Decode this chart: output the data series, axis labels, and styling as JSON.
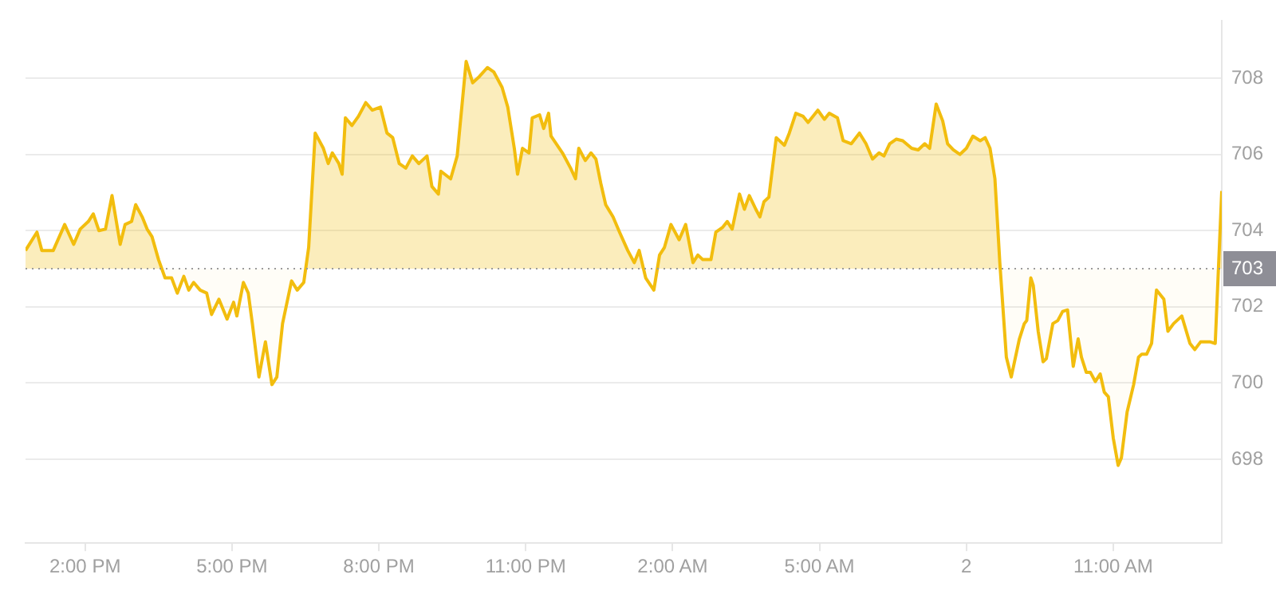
{
  "chart_data": {
    "type": "area",
    "x": [
      "--01-01T12:47",
      "--01-01T13:01",
      "--01-01T13:07",
      "--01-01T13:21",
      "--01-01T13:35",
      "--01-01T13:46",
      "--01-01T13:54",
      "--01-01T14:04",
      "--01-01T14:10",
      "--01-01T14:17",
      "--01-01T14:25",
      "--01-01T14:33",
      "--01-01T14:43",
      "--01-01T14:49",
      "--01-01T14:57",
      "--01-01T15:02",
      "--01-01T15:10",
      "--01-01T15:16",
      "--01-01T15:22",
      "--01-01T15:30",
      "--01-01T15:38",
      "--01-01T15:46",
      "--01-01T15:53",
      "--01-01T16:01",
      "--01-01T16:07",
      "--01-01T16:13",
      "--01-01T16:21",
      "--01-01T16:29",
      "--01-01T16:35",
      "--01-01T16:44",
      "--01-01T16:54",
      "--01-01T17:02",
      "--01-01T17:06",
      "--01-01T17:14",
      "--01-01T17:20",
      "--01-01T17:25",
      "--01-01T17:33",
      "--01-01T17:41",
      "--01-01T17:49",
      "--01-01T17:55",
      "--01-01T18:02",
      "--01-01T18:13",
      "--01-01T18:20",
      "--01-01T18:28",
      "--01-01T18:34",
      "--01-01T18:42",
      "--01-01T18:52",
      "--01-01T18:58",
      "--01-01T19:03",
      "--01-01T19:11",
      "--01-01T19:15",
      "--01-01T19:19",
      "--01-01T19:27",
      "--01-01T19:35",
      "--01-01T19:44",
      "--01-01T19:52",
      "--01-01T20:02",
      "--01-01T20:10",
      "--01-01T20:17",
      "--01-01T20:25",
      "--01-01T20:33",
      "--01-01T20:41",
      "--01-01T20:49",
      "--01-01T20:59",
      "--01-01T21:05",
      "--01-01T21:13",
      "--01-01T21:16",
      "--01-01T21:28",
      "--01-01T21:36",
      "--01-01T21:47",
      "--01-01T21:55",
      "--01-01T22:03",
      "--01-01T22:13",
      "--01-01T22:21",
      "--01-01T22:31",
      "--01-01T22:38",
      "--01-01T22:46",
      "--01-01T22:50",
      "--01-01T22:56",
      "--01-01T23:04",
      "--01-01T23:08",
      "--01-01T23:17",
      "--01-01T23:22",
      "--01-01T23:28",
      "--01-01T23:31",
      "--01-01T23:45",
      "--01-01T23:55",
      "--01-02T00:01",
      "--01-02T00:05",
      "--01-02T00:13",
      "--01-02T00:20",
      "--01-02T00:26",
      "--01-02T00:32",
      "--01-02T00:38",
      "--01-02T00:47",
      "--01-02T00:55",
      "--01-02T01:05",
      "--01-02T01:13",
      "--01-02T01:19",
      "--01-02T01:27",
      "--01-02T01:37",
      "--01-02T01:44",
      "--01-02T01:50",
      "--01-02T01:58",
      "--01-02T02:08",
      "--01-02T02:16",
      "--01-02T02:25",
      "--01-02T02:31",
      "--01-02T02:37",
      "--01-02T02:47",
      "--01-02T02:53",
      "--01-02T03:01",
      "--01-02T03:07",
      "--01-02T03:13",
      "--01-02T03:22",
      "--01-02T03:28",
      "--01-02T03:34",
      "--01-02T03:42",
      "--01-02T03:47",
      "--01-02T03:52",
      "--01-02T03:58",
      "--01-02T04:07",
      "--01-02T04:17",
      "--01-02T04:23",
      "--01-02T04:31",
      "--01-02T04:40",
      "--01-02T04:46",
      "--01-02T04:58",
      "--01-02T05:06",
      "--01-02T05:12",
      "--01-02T05:22",
      "--01-02T05:29",
      "--01-02T05:39",
      "--01-02T05:49",
      "--01-02T05:57",
      "--01-02T06:05",
      "--01-02T06:13",
      "--01-02T06:19",
      "--01-02T06:26",
      "--01-02T06:34",
      "--01-02T06:42",
      "--01-02T06:53",
      "--01-02T07:01",
      "--01-02T07:09",
      "--01-02T07:15",
      "--01-02T07:23",
      "--01-02T07:31",
      "--01-02T07:37",
      "--01-02T07:44",
      "--01-02T07:52",
      "--01-02T08:00",
      "--01-02T08:08",
      "--01-02T08:17",
      "--01-02T08:23",
      "--01-02T08:29",
      "--01-02T08:35",
      "--01-02T08:41",
      "--01-02T08:49",
      "--01-02T08:55",
      "--01-02T09:05",
      "--01-02T09:11",
      "--01-02T09:14",
      "--01-02T09:19",
      "--01-02T09:22",
      "--01-02T09:28",
      "--01-02T09:34",
      "--01-02T09:38",
      "--01-02T09:46",
      "--01-02T09:52",
      "--01-02T09:58",
      "--01-02T10:04",
      "--01-02T10:11",
      "--01-02T10:17",
      "--01-02T10:21",
      "--01-02T10:27",
      "--01-02T10:32",
      "--01-02T10:38",
      "--01-02T10:44",
      "--01-02T10:49",
      "--01-02T10:54",
      "--01-02T11:00",
      "--01-02T11:06",
      "--01-02T11:10",
      "--01-02T11:17",
      "--01-02T11:25",
      "--01-02T11:31",
      "--01-02T11:35",
      "--01-02T11:41",
      "--01-02T11:47",
      "--01-02T11:53",
      "--01-02T12:02",
      "--01-02T12:07",
      "--01-02T12:14",
      "--01-02T12:24",
      "--01-02T12:34",
      "--01-02T12:40",
      "--01-02T12:47",
      "--01-02T12:59",
      "--01-02T13:05",
      "--01-02T13:13"
    ],
    "series": [
      {
        "color": "#f2bd0e",
        "values": [
          703.48,
          703.96,
          703.48,
          703.48,
          704.16,
          703.64,
          704.04,
          704.24,
          704.44,
          704.0,
          704.04,
          704.92,
          703.64,
          704.16,
          704.24,
          704.68,
          704.36,
          704.04,
          703.84,
          703.24,
          702.76,
          702.76,
          702.36,
          702.8,
          702.44,
          702.64,
          702.44,
          702.36,
          701.8,
          702.2,
          701.68,
          702.12,
          701.76,
          702.64,
          702.36,
          701.56,
          700.16,
          701.08,
          699.96,
          700.16,
          701.56,
          702.68,
          702.44,
          702.64,
          703.56,
          706.56,
          706.16,
          705.76,
          706.04,
          705.76,
          705.48,
          706.96,
          706.76,
          707.0,
          707.36,
          707.16,
          707.24,
          706.56,
          706.44,
          705.76,
          705.64,
          705.96,
          705.76,
          705.96,
          705.16,
          704.96,
          705.56,
          705.36,
          705.96,
          708.44,
          707.88,
          708.04,
          708.28,
          708.16,
          707.76,
          707.24,
          706.16,
          705.48,
          706.16,
          706.04,
          706.96,
          707.04,
          706.68,
          707.08,
          706.48,
          706.04,
          705.64,
          705.36,
          706.16,
          705.84,
          706.04,
          705.88,
          705.24,
          704.68,
          704.36,
          703.96,
          703.48,
          703.16,
          703.48,
          702.76,
          702.44,
          703.36,
          703.56,
          704.16,
          703.76,
          704.16,
          703.16,
          703.36,
          703.24,
          703.24,
          703.96,
          704.08,
          704.24,
          704.04,
          704.96,
          704.56,
          704.92,
          704.56,
          704.36,
          704.76,
          704.88,
          706.44,
          706.24,
          706.56,
          707.08,
          707.0,
          706.84,
          707.16,
          706.92,
          707.08,
          706.96,
          706.36,
          706.28,
          706.56,
          706.28,
          705.88,
          706.04,
          705.96,
          706.28,
          706.4,
          706.36,
          706.16,
          706.12,
          706.28,
          706.16,
          707.32,
          706.88,
          706.28,
          706.12,
          706.0,
          706.16,
          706.48,
          706.36,
          706.44,
          706.16,
          705.36,
          703.16,
          700.68,
          700.16,
          701.16,
          701.56,
          701.64,
          702.76,
          702.56,
          701.36,
          700.56,
          700.64,
          701.56,
          701.64,
          701.88,
          701.92,
          700.44,
          701.16,
          700.68,
          700.28,
          700.28,
          700.04,
          700.24,
          699.76,
          699.64,
          698.56,
          697.84,
          698.04,
          699.24,
          699.96,
          700.68,
          700.76,
          700.76,
          701.04,
          702.44,
          702.2,
          701.36,
          701.56,
          701.76,
          701.04,
          700.88,
          701.08,
          701.08,
          701.04,
          705.04
        ]
      }
    ],
    "xlim": [
      "--01-01T12:47",
      "--01-02T13:13"
    ],
    "xticks": [
      {
        "value": "--01-01T14:00",
        "label": "2:00 PM"
      },
      {
        "value": "--01-01T17:00",
        "label": "5:00 PM"
      },
      {
        "value": "--01-01T20:00",
        "label": "8:00 PM"
      },
      {
        "value": "--01-01T23:00",
        "label": "11:00 PM"
      },
      {
        "value": "--01-02T02:00",
        "label": "2:00 AM"
      },
      {
        "value": "--01-02T05:00",
        "label": "5:00 AM"
      },
      {
        "value": "--01-02T08:00",
        "label": "2"
      },
      {
        "value": "--01-02T11:00",
        "label": "11:00 AM"
      }
    ],
    "ylim": [
      695.8,
      709.5
    ],
    "yticks": [
      698,
      700,
      702,
      704,
      706,
      708
    ],
    "ref_lines": [
      {
        "axis": "y",
        "value": 703,
        "label": "703",
        "line_style": "dotted"
      }
    ],
    "grid": "y",
    "legend": false,
    "marker": "none",
    "line_style": "solid"
  }
}
